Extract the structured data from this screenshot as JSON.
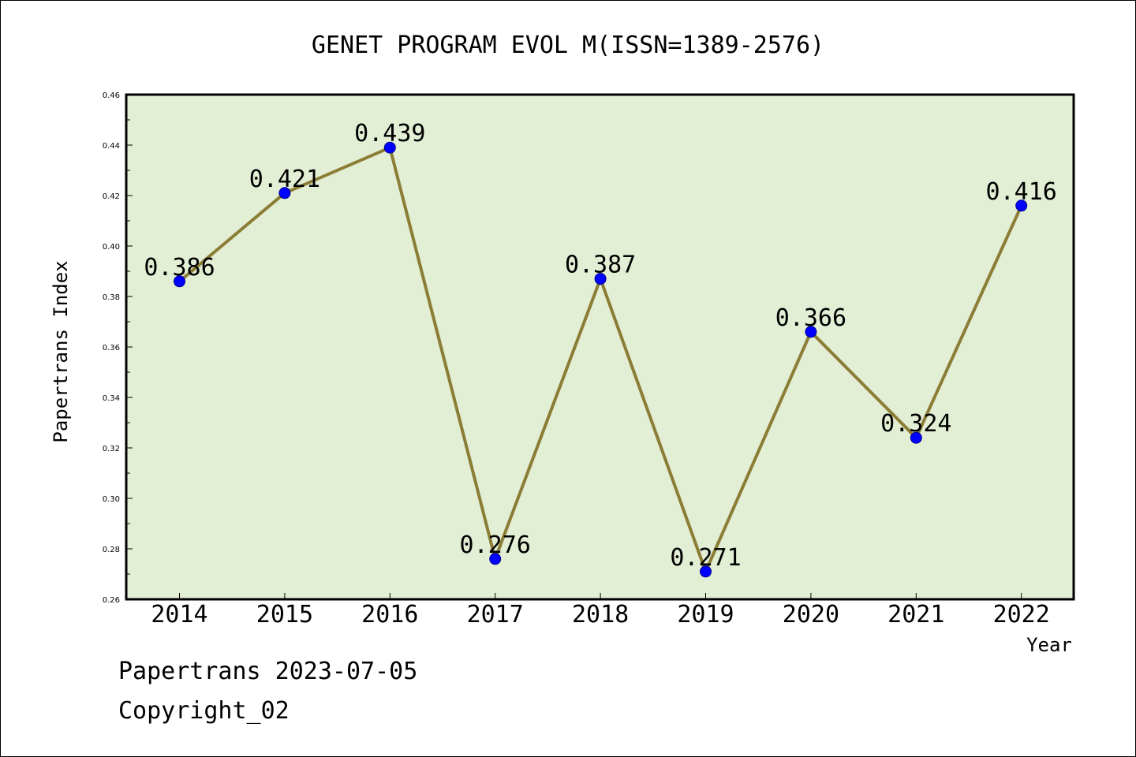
{
  "chart_data": {
    "type": "line",
    "title": "GENET PROGRAM EVOL M(ISSN=1389-2576)",
    "xlabel": "Year",
    "ylabel": "Papertrans Index",
    "categories": [
      "2014",
      "2015",
      "2016",
      "2017",
      "2018",
      "2019",
      "2020",
      "2021",
      "2022"
    ],
    "series": [
      {
        "values": [
          0.386,
          0.421,
          0.439,
          0.276,
          0.387,
          0.271,
          0.366,
          0.324,
          0.416
        ],
        "labels": [
          "0.386",
          "0.421",
          "0.439",
          "0.276",
          "0.387",
          "0.271",
          "0.366",
          "0.324",
          "0.416"
        ]
      }
    ],
    "ylim": [
      0.26,
      0.46
    ],
    "y_ticks": [
      "0.26",
      "0.28",
      "0.30",
      "0.32",
      "0.34",
      "0.36",
      "0.38",
      "0.40",
      "0.42",
      "0.44",
      "0.46"
    ],
    "grid": false,
    "legend": "none",
    "colors": {
      "plot_background": "#e2efd5",
      "line": "#8b7d36",
      "marker": "#0000ff",
      "frame": "#000000"
    }
  },
  "footer": {
    "line1": "Papertrans 2023-07-05",
    "line2": "Copyright_02"
  }
}
